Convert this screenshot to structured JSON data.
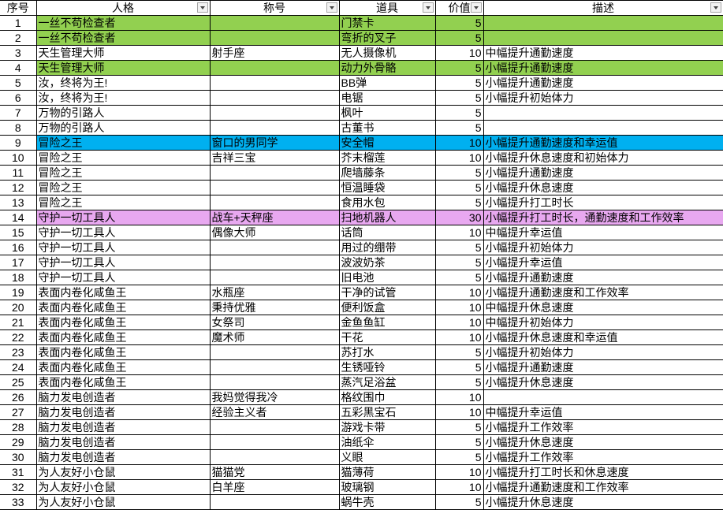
{
  "colors": {
    "green": "#92d050",
    "blue": "#00b0f0",
    "pink": "#e8a8f0"
  },
  "headers": [
    {
      "label": "序号",
      "filter": false
    },
    {
      "label": "人格",
      "filter": true
    },
    {
      "label": "称号",
      "filter": true
    },
    {
      "label": "道具",
      "filter": true
    },
    {
      "label": "价值",
      "filter": true
    },
    {
      "label": "描述",
      "filter": true
    }
  ],
  "rows": [
    {
      "cells": [
        "1",
        "一丝不苟检查者",
        "",
        "门禁卡",
        "5",
        ""
      ],
      "fill": "green"
    },
    {
      "cells": [
        "2",
        "一丝不苟检查者",
        "",
        "弯折的叉子",
        "5",
        ""
      ],
      "fill": "green"
    },
    {
      "cells": [
        "3",
        "天生管理大师",
        "射手座",
        "无人摄像机",
        "10",
        "中幅提升通勤速度"
      ]
    },
    {
      "cells": [
        "4",
        "天生管理大师",
        "",
        "动力外骨骼",
        "5",
        "小幅提升通勤速度"
      ],
      "fill": "green"
    },
    {
      "cells": [
        "5",
        "汝，终将为王!",
        "",
        "BB弹",
        "5",
        "小幅提升通勤速度"
      ]
    },
    {
      "cells": [
        "6",
        "汝，终将为王!",
        "",
        "电锯",
        "5",
        "小幅提升初始体力"
      ]
    },
    {
      "cells": [
        "7",
        "万物的引路人",
        "",
        "枫叶",
        "5",
        ""
      ]
    },
    {
      "cells": [
        "8",
        "万物的引路人",
        "",
        "古董书",
        "5",
        ""
      ]
    },
    {
      "cells": [
        "9",
        "冒险之王",
        "窗口的男同学",
        "安全帽",
        "10",
        "小幅提升通勤速度和幸运值"
      ],
      "fill": "blue"
    },
    {
      "cells": [
        "10",
        "冒险之王",
        "吉祥三宝",
        "芥末榴莲",
        "10",
        "小幅提升休息速度和初始体力"
      ]
    },
    {
      "cells": [
        "11",
        "冒险之王",
        "",
        "爬墙藤条",
        "5",
        "小幅提升通勤速度"
      ]
    },
    {
      "cells": [
        "12",
        "冒险之王",
        "",
        "恒温睡袋",
        "5",
        "小幅提升休息速度"
      ]
    },
    {
      "cells": [
        "13",
        "冒险之王",
        "",
        "食用水包",
        "5",
        "小幅提升打工时长"
      ]
    },
    {
      "cells": [
        "14",
        "守护一切工具人",
        "战车+天秤座",
        "扫地机器人",
        "30",
        "小幅提升打工时长，通勤速度和工作效率"
      ],
      "fill": "pink"
    },
    {
      "cells": [
        "15",
        "守护一切工具人",
        "偶像大师",
        "话筒",
        "10",
        "中幅提升幸运值"
      ]
    },
    {
      "cells": [
        "16",
        "守护一切工具人",
        "",
        "用过的绷带",
        "5",
        "小幅提升初始体力"
      ]
    },
    {
      "cells": [
        "17",
        "守护一切工具人",
        "",
        "波波奶茶",
        "5",
        "小幅提升幸运值"
      ]
    },
    {
      "cells": [
        "18",
        "守护一切工具人",
        "",
        "旧电池",
        "5",
        "小幅提升通勤速度"
      ]
    },
    {
      "cells": [
        "19",
        "表面内卷化咸鱼王",
        "水瓶座",
        "干净的试管",
        "10",
        "小幅提升通勤速度和工作效率"
      ]
    },
    {
      "cells": [
        "20",
        "表面内卷化咸鱼王",
        "秉持优雅",
        "便利饭盒",
        "10",
        "中幅提升休息速度"
      ]
    },
    {
      "cells": [
        "21",
        "表面内卷化咸鱼王",
        "女祭司",
        "金鱼鱼缸",
        "10",
        "中幅提升初始体力"
      ]
    },
    {
      "cells": [
        "22",
        "表面内卷化咸鱼王",
        "魔术师",
        "干花",
        "10",
        "小幅提升休息速度和幸运值"
      ]
    },
    {
      "cells": [
        "23",
        "表面内卷化咸鱼王",
        "",
        "苏打水",
        "5",
        "小幅提升初始体力"
      ]
    },
    {
      "cells": [
        "24",
        "表面内卷化咸鱼王",
        "",
        "生锈哑铃",
        "5",
        "小幅提升通勤速度"
      ]
    },
    {
      "cells": [
        "25",
        "表面内卷化咸鱼王",
        "",
        "蒸汽足浴盆",
        "5",
        "小幅提升休息速度"
      ]
    },
    {
      "cells": [
        "26",
        "脑力发电创造者",
        "我妈觉得我冷",
        "格纹围巾",
        "10",
        ""
      ]
    },
    {
      "cells": [
        "27",
        "脑力发电创造者",
        "经验主义者",
        "五彩黑宝石",
        "10",
        "中幅提升幸运值"
      ]
    },
    {
      "cells": [
        "28",
        "脑力发电创造者",
        "",
        "游戏卡带",
        "5",
        "小幅提升工作效率"
      ]
    },
    {
      "cells": [
        "29",
        "脑力发电创造者",
        "",
        "油纸伞",
        "5",
        "小幅提升休息速度"
      ]
    },
    {
      "cells": [
        "30",
        "脑力发电创造者",
        "",
        "义眼",
        "5",
        "小幅提升工作效率"
      ]
    },
    {
      "cells": [
        "31",
        "为人友好小仓鼠",
        "猫猫党",
        "猫薄荷",
        "10",
        "小幅提升打工时长和休息速度"
      ]
    },
    {
      "cells": [
        "32",
        "为人友好小仓鼠",
        "白羊座",
        "玻璃钢",
        "10",
        "小幅提升通勤速度和工作效率"
      ]
    },
    {
      "cells": [
        "33",
        "为人友好小仓鼠",
        "",
        "蜗牛壳",
        "5",
        "小幅提升休息速度"
      ]
    }
  ]
}
